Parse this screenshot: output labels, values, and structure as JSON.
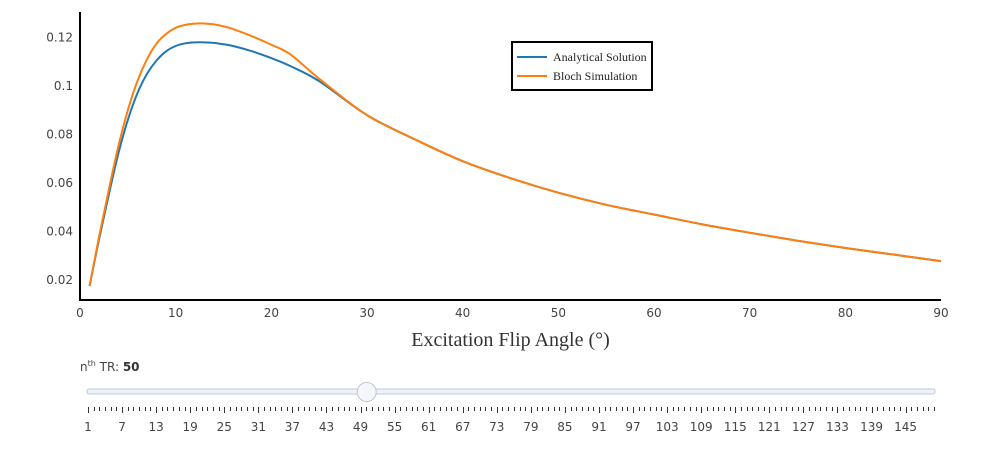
{
  "chart_data": {
    "type": "line",
    "xlabel": "Excitation Flip Angle (°)",
    "ylabel": "",
    "xlim": [
      0,
      90
    ],
    "ylim": [
      0.015,
      0.132
    ],
    "x_ticks": [
      0,
      10,
      20,
      30,
      40,
      50,
      60,
      70,
      80,
      90
    ],
    "y_ticks": [
      0.02,
      0.04,
      0.06,
      0.08,
      0.1,
      0.12
    ],
    "y_tick_labels": [
      "0.02",
      "0.04",
      "0.06",
      "0.08",
      "0.1",
      "0.12"
    ],
    "legend_position": "top-right",
    "grid": false,
    "series": [
      {
        "name": "Analytical Solution",
        "color": "#1f77b4",
        "x": [
          1,
          2,
          3,
          4,
          5,
          6,
          7,
          8,
          9,
          10,
          11,
          12,
          13,
          14,
          15,
          16,
          18,
          20,
          22,
          25,
          30,
          35,
          40,
          45,
          50,
          55,
          60,
          65,
          70,
          75,
          80,
          85,
          90
        ],
        "y": [
          0.0175,
          0.037,
          0.055,
          0.072,
          0.086,
          0.097,
          0.105,
          0.1105,
          0.1143,
          0.1165,
          0.1176,
          0.118,
          0.118,
          0.1178,
          0.1172,
          0.1165,
          0.1143,
          0.1115,
          0.1082,
          0.102,
          0.088,
          0.078,
          0.069,
          0.062,
          0.056,
          0.051,
          0.047,
          0.043,
          0.0395,
          0.0362,
          0.0332,
          0.0305,
          0.0278
        ]
      },
      {
        "name": "Bloch Simulation",
        "color": "#ff7f0e",
        "x": [
          1,
          2,
          3,
          4,
          5,
          6,
          7,
          8,
          9,
          10,
          11,
          12,
          13,
          14,
          15,
          16,
          18,
          20,
          22,
          25,
          30,
          35,
          40,
          45,
          50,
          55,
          60,
          65,
          70,
          75,
          80,
          85,
          90
        ],
        "y": [
          0.0175,
          0.038,
          0.057,
          0.075,
          0.09,
          0.102,
          0.111,
          0.1175,
          0.1215,
          0.124,
          0.1252,
          0.1257,
          0.1258,
          0.1254,
          0.1246,
          0.1235,
          0.1205,
          0.117,
          0.113,
          0.103,
          0.088,
          0.078,
          0.069,
          0.062,
          0.056,
          0.051,
          0.047,
          0.043,
          0.0395,
          0.0362,
          0.0332,
          0.0305,
          0.0278
        ]
      }
    ]
  },
  "slider": {
    "label_prefix": "n",
    "label_sup": "th",
    "label_suffix": " TR: ",
    "current_value": "50",
    "min": 1,
    "max": 150,
    "value": 50,
    "tick_labels": [
      "1",
      "7",
      "13",
      "19",
      "25",
      "31",
      "37",
      "43",
      "49",
      "55",
      "61",
      "67",
      "73",
      "79",
      "85",
      "91",
      "97",
      "103",
      "109",
      "115",
      "121",
      "127",
      "133",
      "139",
      "145"
    ],
    "colors": {
      "track": "#f0f2fa",
      "track_border": "#bec8d9",
      "handle": "#f5f7fc",
      "handle_border": "#bec8d9",
      "ticks": "#333333"
    }
  }
}
